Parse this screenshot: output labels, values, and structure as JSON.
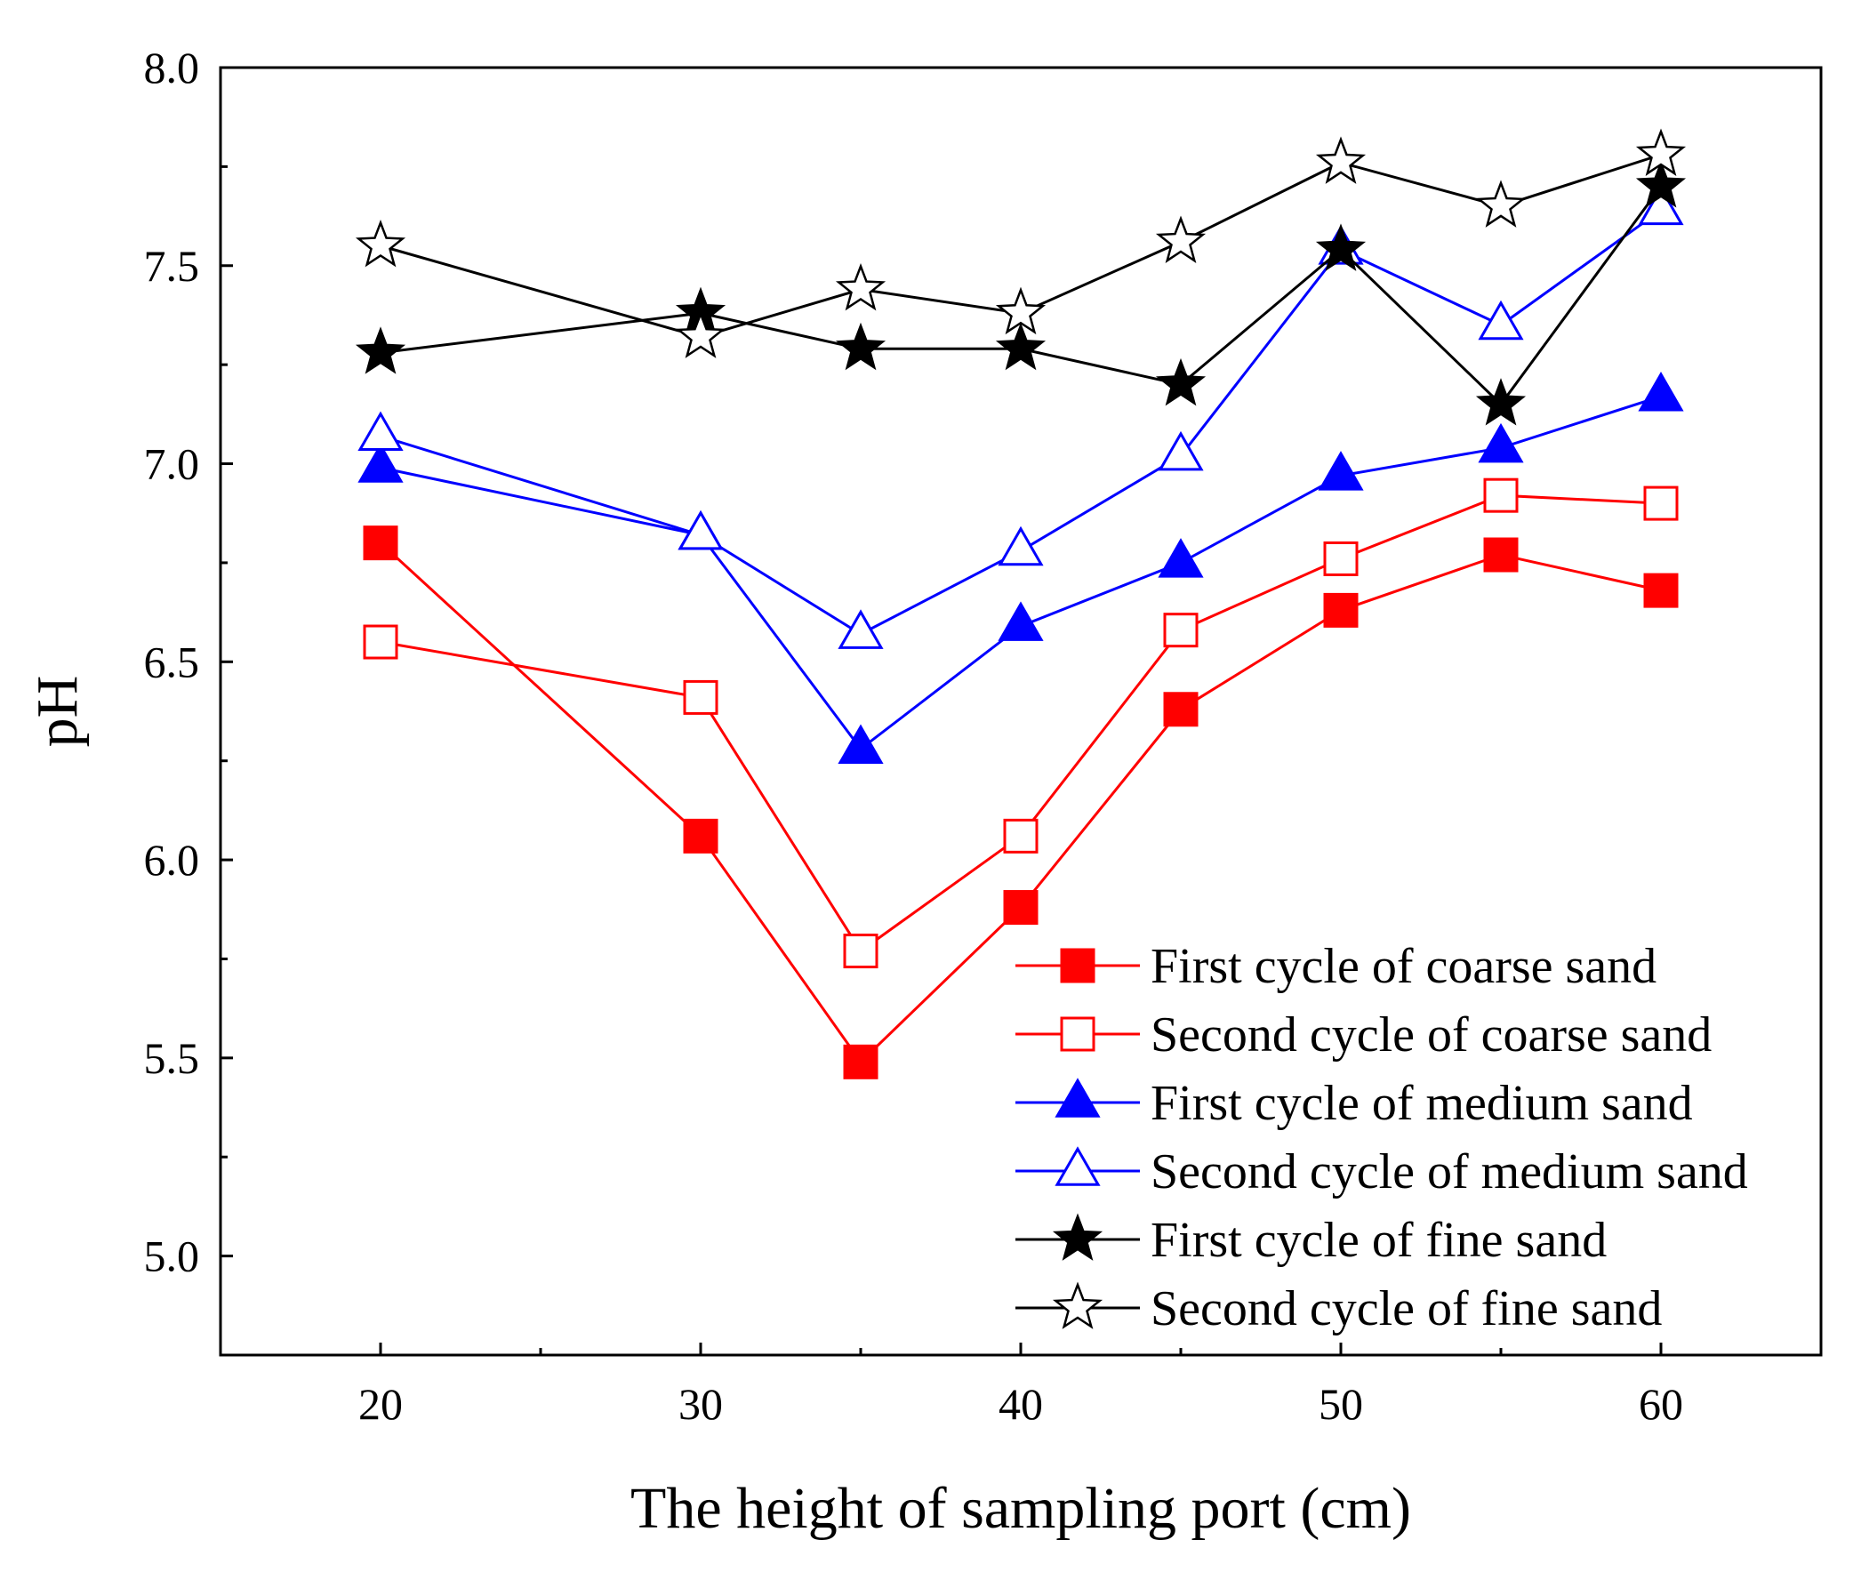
{
  "chart_data": {
    "type": "line",
    "title": "",
    "xlabel": "The height of sampling port (cm)",
    "ylabel": "pH",
    "xlim": [
      15,
      65
    ],
    "ylim": [
      4.75,
      8.0
    ],
    "xticks": [
      20,
      30,
      40,
      50,
      60
    ],
    "xtick_labels": [
      "20",
      "30",
      "40",
      "50",
      "60"
    ],
    "yticks": [
      5.0,
      5.5,
      6.0,
      6.5,
      7.0,
      7.5,
      8.0
    ],
    "ytick_labels": [
      "5.0",
      "5.5",
      "6.0",
      "6.5",
      "7.0",
      "7.5",
      "8.0"
    ],
    "grid": false,
    "legend_position": "bottom-right",
    "x": [
      20,
      30,
      35,
      40,
      45,
      50,
      55,
      60
    ],
    "series": [
      {
        "name": "First cycle of coarse sand",
        "color": "#ff0000",
        "marker": "square",
        "filled": true,
        "values": [
          6.8,
          6.06,
          5.49,
          5.88,
          6.38,
          6.63,
          6.77,
          6.68
        ]
      },
      {
        "name": "Second cycle of coarse sand",
        "color": "#ff0000",
        "marker": "square",
        "filled": false,
        "values": [
          6.55,
          6.41,
          5.77,
          6.06,
          6.58,
          6.76,
          6.92,
          6.9
        ]
      },
      {
        "name": "First cycle of medium sand",
        "color": "#0000ff",
        "marker": "triangle",
        "filled": true,
        "values": [
          6.99,
          6.82,
          6.28,
          6.59,
          6.75,
          6.97,
          7.04,
          7.17
        ]
      },
      {
        "name": "Second cycle of medium sand",
        "color": "#0000ff",
        "marker": "triangle",
        "filled": false,
        "values": [
          7.07,
          6.82,
          6.57,
          6.78,
          7.02,
          7.54,
          7.35,
          7.64
        ]
      },
      {
        "name": "First cycle of fine sand",
        "color": "#000000",
        "marker": "star",
        "filled": true,
        "values": [
          7.28,
          7.38,
          7.29,
          7.29,
          7.2,
          7.54,
          7.15,
          7.7
        ]
      },
      {
        "name": "Second cycle of fine sand",
        "color": "#000000",
        "marker": "star",
        "filled": false,
        "values": [
          7.55,
          7.32,
          7.44,
          7.38,
          7.56,
          7.76,
          7.65,
          7.78
        ]
      }
    ]
  }
}
